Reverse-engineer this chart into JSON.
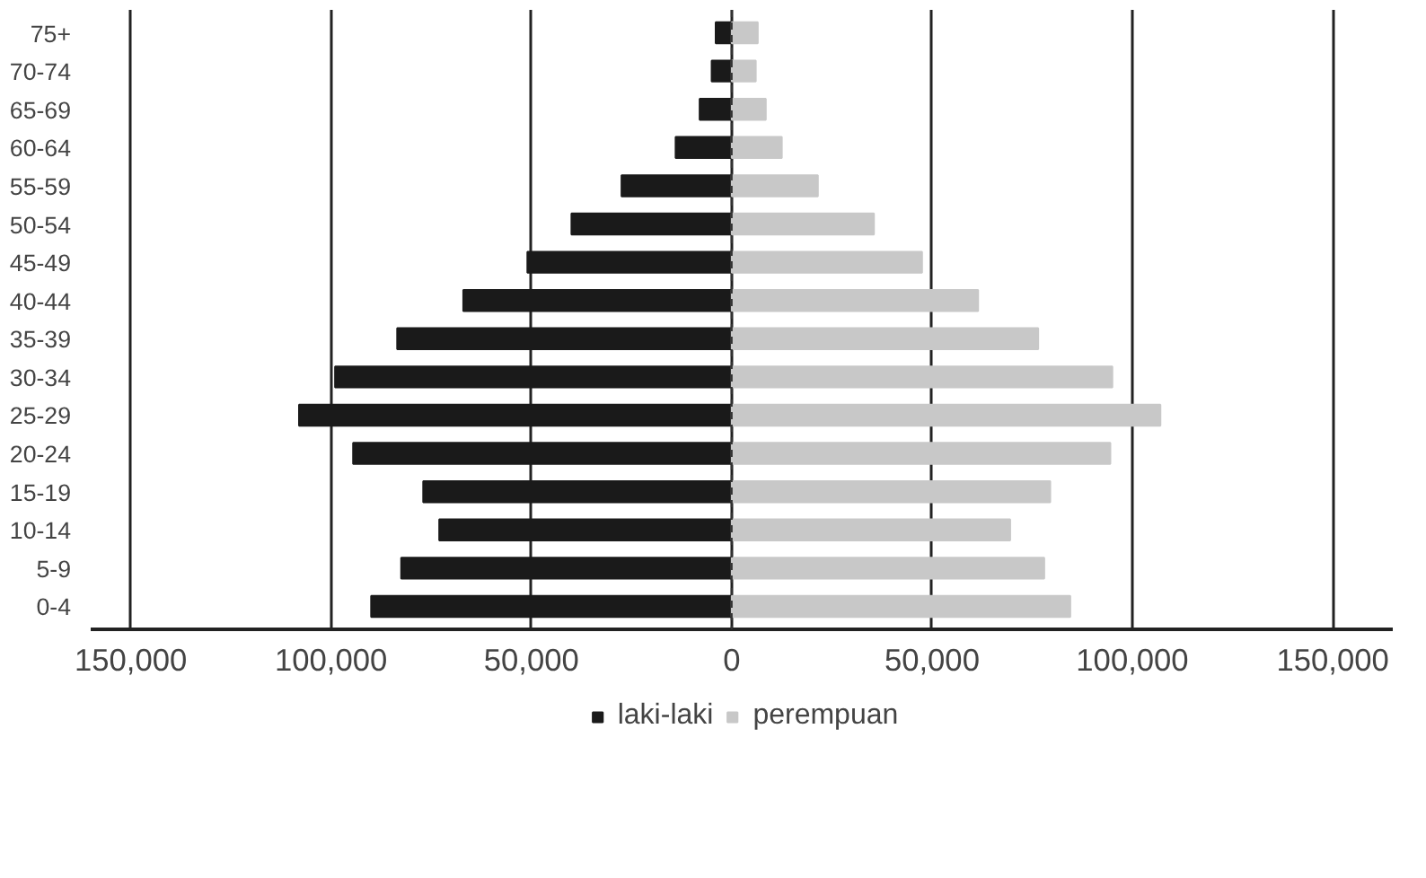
{
  "chart_data": {
    "type": "bar",
    "orientation": "horizontal",
    "categories": [
      "75+",
      "70-74",
      "65-69",
      "60-64",
      "55-59",
      "50-54",
      "45-49",
      "40-44",
      "35-39",
      "30-34",
      "25-29",
      "20-24",
      "15-19",
      "10-14",
      "5-9",
      "0-4"
    ],
    "series": [
      {
        "name": "laki-laki",
        "color": "#1a1a1a",
        "values": [
          -4000,
          -5000,
          -8000,
          -14000,
          -27500,
          -40000,
          -51000,
          -67000,
          -83500,
          -99000,
          -108000,
          -94500,
          -77000,
          -73000,
          -82500,
          -90000
        ]
      },
      {
        "name": "perempuan",
        "color": "#c8c8c8",
        "values": [
          6500,
          6000,
          8500,
          12500,
          21500,
          35500,
          47500,
          61500,
          76500,
          95000,
          107000,
          94500,
          79500,
          69500,
          78000,
          84500
        ]
      }
    ],
    "xlim": [
      -160000,
      165000
    ],
    "xticks": [
      {
        "value": -150000,
        "label": "150,000"
      },
      {
        "value": -100000,
        "label": "100,000"
      },
      {
        "value": -50000,
        "label": "50,000"
      },
      0,
      {
        "value": 50000,
        "label": "50,000"
      },
      {
        "value": 100000,
        "label": "100,000"
      },
      {
        "value": 150000,
        "label": "150,000"
      }
    ],
    "ref_lines": [
      {
        "axis": "x",
        "value": 0,
        "label": null,
        "color": "#333333",
        "line_style": "dashed"
      }
    ],
    "grid": "x",
    "legend": "bottom",
    "stacked": true
  }
}
